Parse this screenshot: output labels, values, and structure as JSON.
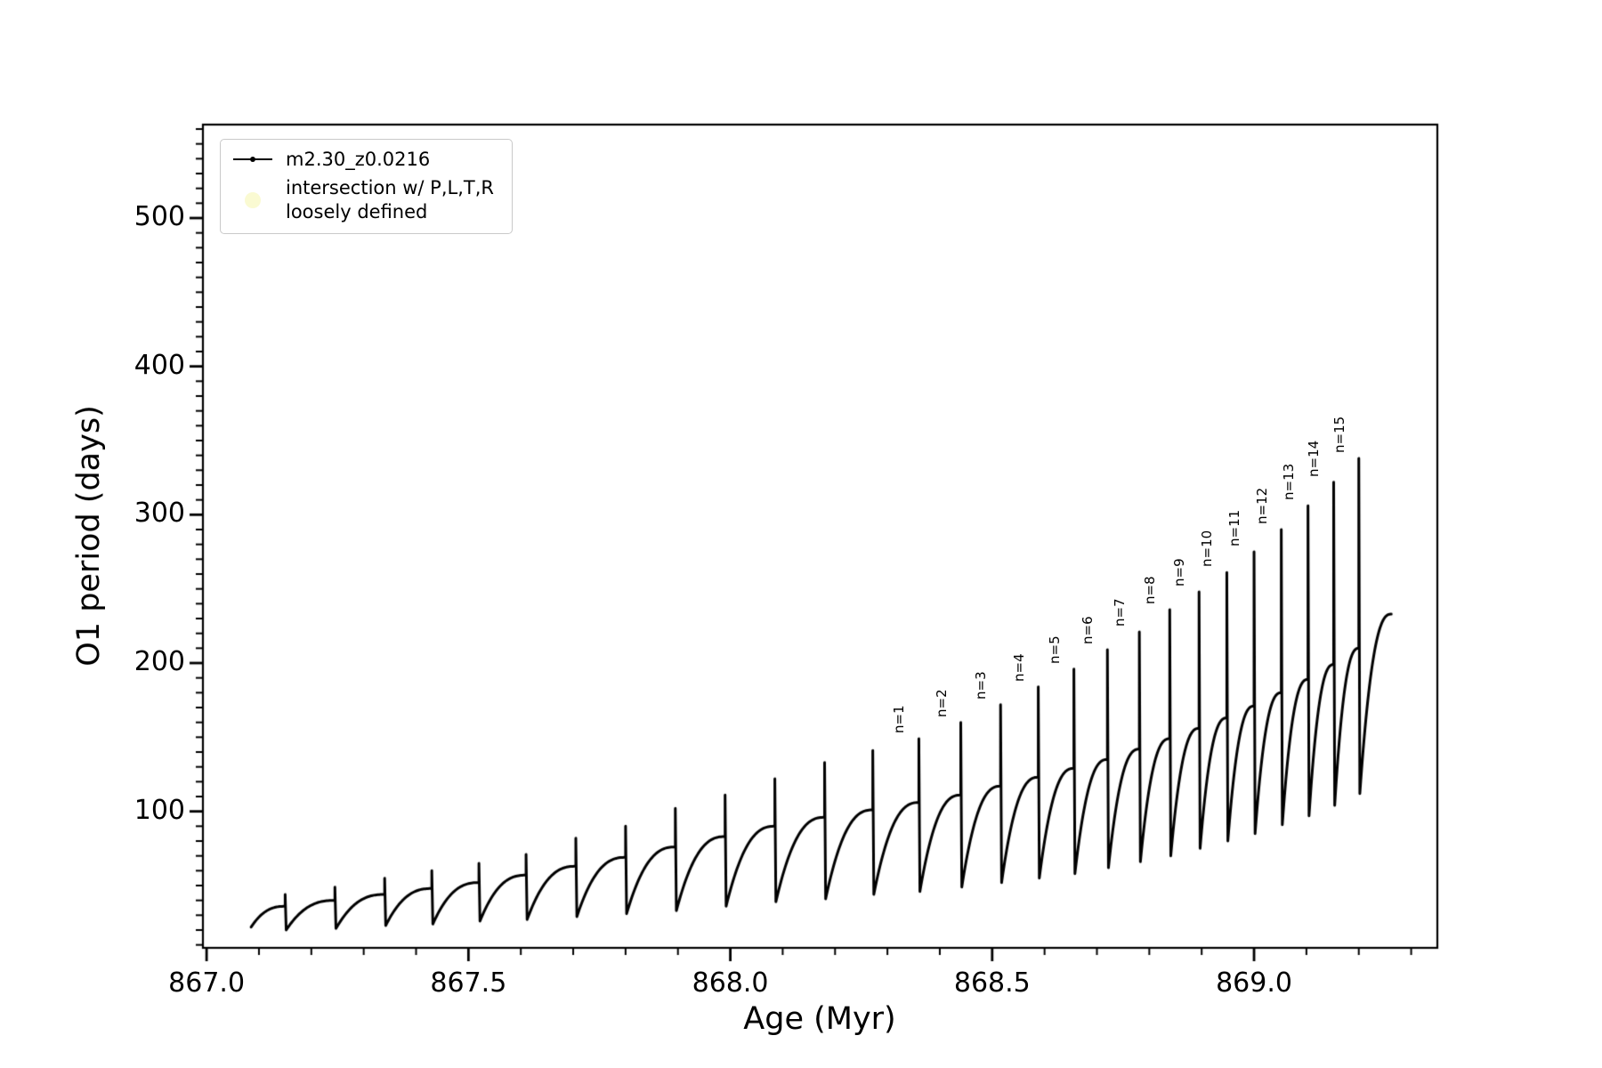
{
  "chart_data": {
    "type": "line",
    "title": "",
    "xlabel": "Age (Myr)",
    "ylabel": "O1 period (days)",
    "xlim": [
      866.993,
      869.35
    ],
    "ylim": [
      8,
      563
    ],
    "xticks": [
      867.0,
      867.5,
      868.0,
      868.5,
      869.0
    ],
    "xtick_labels": [
      "867.0",
      "867.5",
      "868.0",
      "868.5",
      "869.0"
    ],
    "yticks": [
      100,
      200,
      300,
      400,
      500
    ],
    "x_minor_step": 0.1,
    "y_minor_step": 10,
    "grid": false,
    "line_color": "#000000",
    "legend_position": "upper-left",
    "legend": [
      {
        "label": "m2.30_z0.0216",
        "marker": "line-with-dot",
        "color": "#000000"
      },
      {
        "label": "intersection w/ P,L,T,R\nloosely defined",
        "marker": "circle",
        "color": "#fafad2"
      }
    ],
    "cycles": [
      {
        "x0": 867.085,
        "y0": 22,
        "x1": 867.15,
        "hump": 36,
        "peak": 44
      },
      {
        "x0": 867.152,
        "y0": 20,
        "x1": 867.245,
        "hump": 40,
        "peak": 49
      },
      {
        "x0": 867.247,
        "y0": 21,
        "x1": 867.34,
        "hump": 44,
        "peak": 55
      },
      {
        "x0": 867.342,
        "y0": 23,
        "x1": 867.43,
        "hump": 48,
        "peak": 60
      },
      {
        "x0": 867.432,
        "y0": 24,
        "x1": 867.52,
        "hump": 52,
        "peak": 65
      },
      {
        "x0": 867.522,
        "y0": 26,
        "x1": 867.61,
        "hump": 57,
        "peak": 71
      },
      {
        "x0": 867.612,
        "y0": 27,
        "x1": 867.705,
        "hump": 63,
        "peak": 82
      },
      {
        "x0": 867.707,
        "y0": 29,
        "x1": 867.8,
        "hump": 69,
        "peak": 90
      },
      {
        "x0": 867.802,
        "y0": 31,
        "x1": 867.895,
        "hump": 76,
        "peak": 102
      },
      {
        "x0": 867.897,
        "y0": 33,
        "x1": 867.99,
        "hump": 83,
        "peak": 111
      },
      {
        "x0": 867.992,
        "y0": 36,
        "x1": 868.085,
        "hump": 90,
        "peak": 122
      },
      {
        "x0": 868.087,
        "y0": 39,
        "x1": 868.18,
        "hump": 96,
        "peak": 133
      },
      {
        "x0": 868.182,
        "y0": 41,
        "x1": 868.272,
        "hump": 101,
        "peak": 141
      },
      {
        "x0": 868.274,
        "y0": 44,
        "x1": 868.36,
        "hump": 106,
        "peak": 149,
        "label": "n=1"
      },
      {
        "x0": 868.362,
        "y0": 46,
        "x1": 868.44,
        "hump": 111,
        "peak": 160,
        "label": "n=2"
      },
      {
        "x0": 868.442,
        "y0": 49,
        "x1": 868.516,
        "hump": 117,
        "peak": 172,
        "label": "n=3"
      },
      {
        "x0": 868.518,
        "y0": 52,
        "x1": 868.588,
        "hump": 123,
        "peak": 184,
        "label": "n=4"
      },
      {
        "x0": 868.59,
        "y0": 55,
        "x1": 868.656,
        "hump": 129,
        "peak": 196,
        "label": "n=5"
      },
      {
        "x0": 868.658,
        "y0": 58,
        "x1": 868.72,
        "hump": 135,
        "peak": 209,
        "label": "n=6"
      },
      {
        "x0": 868.722,
        "y0": 62,
        "x1": 868.781,
        "hump": 142,
        "peak": 221,
        "label": "n=7"
      },
      {
        "x0": 868.783,
        "y0": 66,
        "x1": 868.839,
        "hump": 149,
        "peak": 236,
        "label": "n=8"
      },
      {
        "x0": 868.841,
        "y0": 70,
        "x1": 868.895,
        "hump": 156,
        "peak": 248,
        "label": "n=9"
      },
      {
        "x0": 868.897,
        "y0": 75,
        "x1": 868.948,
        "hump": 163,
        "peak": 261,
        "label": "n=10"
      },
      {
        "x0": 868.95,
        "y0": 80,
        "x1": 869.0,
        "hump": 171,
        "peak": 275,
        "label": "n=11"
      },
      {
        "x0": 869.002,
        "y0": 85,
        "x1": 869.052,
        "hump": 180,
        "peak": 290,
        "label": "n=12"
      },
      {
        "x0": 869.054,
        "y0": 91,
        "x1": 869.103,
        "hump": 189,
        "peak": 306,
        "label": "n=13"
      },
      {
        "x0": 869.105,
        "y0": 97,
        "x1": 869.152,
        "hump": 199,
        "peak": 322,
        "label": "n=14"
      },
      {
        "x0": 869.154,
        "y0": 104,
        "x1": 869.2,
        "hump": 210,
        "peak": 338,
        "label": "n=15"
      },
      {
        "x0": 869.202,
        "y0": 112,
        "x1": 869.262,
        "hump": 233,
        "peak": null
      }
    ]
  }
}
